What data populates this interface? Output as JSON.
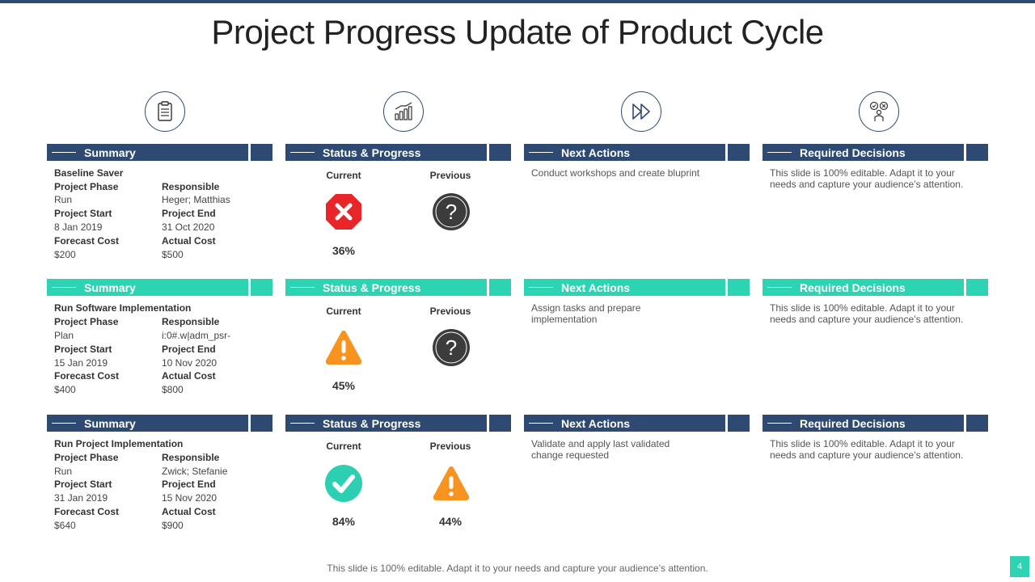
{
  "title": "Project Progress Update of Product Cycle",
  "footer": "This slide is 100% editable. Adapt it to your needs and capture your audience’s attention.",
  "page_number": "4",
  "column_icons": [
    "clipboard-icon",
    "bar-chart-icon",
    "fast-forward-icon",
    "decision-person-icon"
  ],
  "headers": {
    "summary": "Summary",
    "status": "Status & Progress",
    "next": "Next Actions",
    "decisions": "Required Decisions"
  },
  "labels": {
    "phase": "Project Phase",
    "responsible": "Responsible",
    "start": "Project Start",
    "end": "Project End",
    "forecast": "Forecast Cost",
    "actual": "Actual Cost",
    "current": "Current",
    "previous": "Previous"
  },
  "rows": [
    {
      "name": "Baseline Saver",
      "phase": "Run",
      "responsible": "Heger; Matthias",
      "start": "8 Jan 2019",
      "end": "31 Oct 2020",
      "forecast": "$200",
      "actual": "$500",
      "current_status": "stop-error",
      "current_pct": "36%",
      "previous_status": "unknown",
      "previous_pct": "",
      "next_actions": "Conduct workshops and create bluprint",
      "decisions": "This slide is 100% editable. Adapt it to your needs and capture your audience’s attention."
    },
    {
      "name": "Run  Software Implementation",
      "phase": "Plan",
      "responsible": "i:0#.w|adm_psr-",
      "start": "15 Jan 2019",
      "end": "10 Nov 2020",
      "forecast": "$400",
      "actual": "$800",
      "current_status": "warning",
      "current_pct": "45%",
      "previous_status": "unknown",
      "previous_pct": "",
      "next_actions": "Assign tasks and prepare implementation",
      "decisions": "This slide is 100% editable. Adapt it to your needs and capture your audience’s attention."
    },
    {
      "name": "Run  Project Implementation",
      "phase": "Run",
      "responsible": "Zwick; Stefanie",
      "start": "31 Jan 2019",
      "end": "15 Nov 2020",
      "forecast": "$640",
      "actual": "$900",
      "current_status": "ok",
      "current_pct": "84%",
      "previous_status": "warning",
      "previous_pct": "44%",
      "next_actions": "Validate and apply last validated change requested",
      "decisions": "This slide is 100% editable. Adapt it to your needs and capture your audience’s attention."
    }
  ],
  "colors": {
    "navy": "#2f4a72",
    "teal": "#2dd4b4",
    "error_red": "#e8262a",
    "warning_orange": "#f7931e",
    "ok_teal": "#2dcfb3",
    "unknown_dark": "#3c3c3c"
  }
}
